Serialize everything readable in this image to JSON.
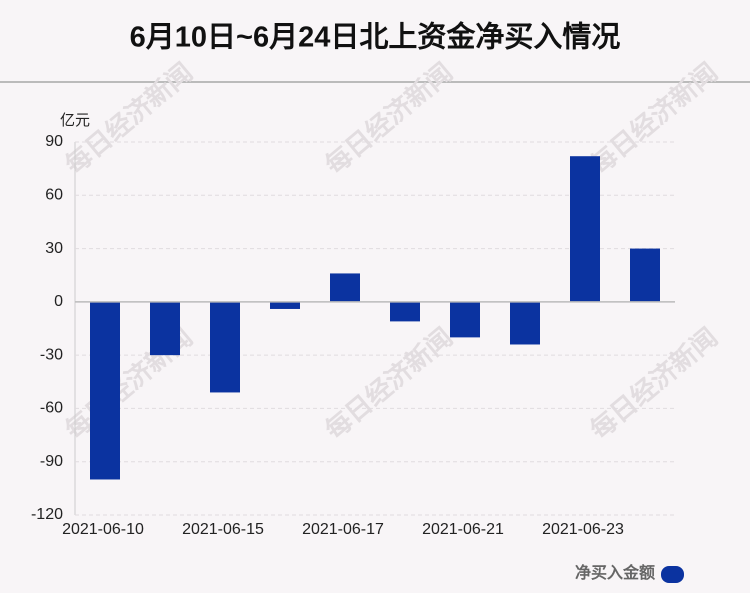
{
  "chart_data": {
    "type": "bar",
    "title": "6月10日~6月24日北上资金净买入情况",
    "y_unit": "亿元",
    "watermark": "每日经济新闻",
    "categories": [
      "2021-06-10",
      null,
      "2021-06-15",
      null,
      "2021-06-17",
      null,
      "2021-06-21",
      null,
      "2021-06-23",
      null
    ],
    "series": [
      {
        "name": "净买入金额",
        "color": "#0b33a0",
        "values": [
          -100,
          -30,
          -51,
          -4,
          16,
          -11,
          -20,
          -24,
          82,
          30
        ]
      }
    ],
    "ylim": [
      -120,
      90
    ],
    "yticks": [
      -120,
      -90,
      -60,
      -30,
      0,
      30,
      60,
      90
    ],
    "grid": true
  }
}
